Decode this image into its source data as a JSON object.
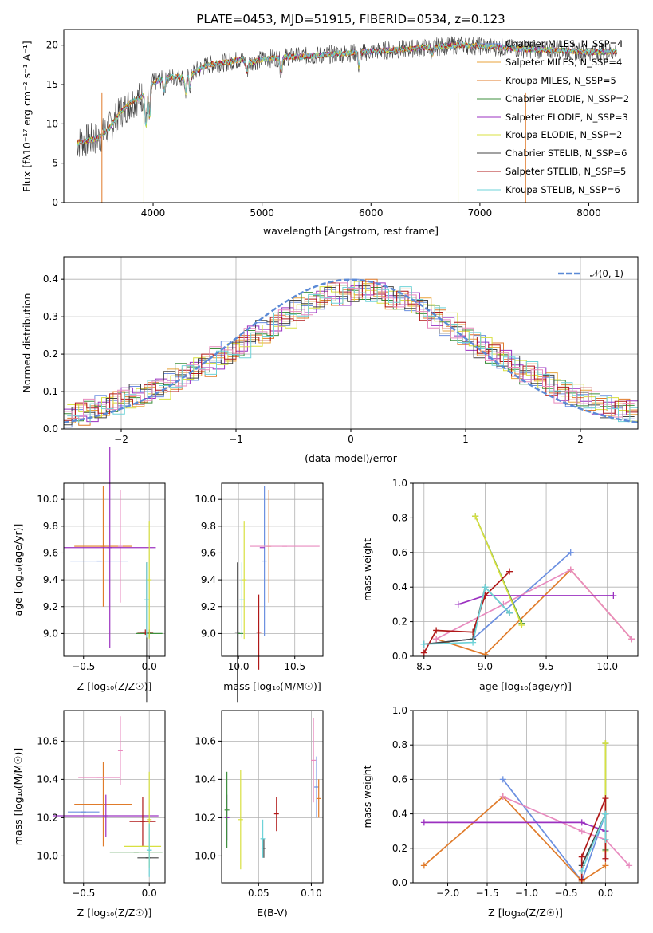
{
  "chart_data": [
    {
      "type": "line",
      "title": "PLATE=0453, MJD=51915, FIBERID=0534, z=0.123",
      "xlabel": "wavelength [Angstrom, rest frame]",
      "ylabel": "Flux [fλ10⁻¹⁷ erg cm⁻² s⁻¹ A⁻¹]",
      "xlim": [
        3180,
        8450
      ],
      "ylim": [
        0,
        22
      ],
      "xticks": [
        4000,
        5000,
        6000,
        7000,
        8000
      ],
      "yticks": [
        0,
        5,
        10,
        15,
        20
      ],
      "legend_position": "top-right",
      "series": [
        {
          "name": "Chabrier MILES, N_SSP=4",
          "color": "#6b8fe0"
        },
        {
          "name": "Salpeter MILES, N_SSP=4",
          "color": "#e8a33b"
        },
        {
          "name": "Kroupa MILES, N_SSP=5",
          "color": "#e07b2a"
        },
        {
          "name": "Chabrier ELODIE, N_SSP=2",
          "color": "#3d8f3d"
        },
        {
          "name": "Salpeter ELODIE, N_SSP=3",
          "color": "#9b30c0"
        },
        {
          "name": "Kroupa ELODIE, N_SSP=2",
          "color": "#d8e040"
        },
        {
          "name": "Chabrier STELIB, N_SSP=6",
          "color": "#444444"
        },
        {
          "name": "Salpeter STELIB, N_SSP=5",
          "color": "#b01818"
        },
        {
          "name": "Kroupa STELIB, N_SSP=6",
          "color": "#6ed3d8"
        }
      ],
      "continuum": [
        [
          3300,
          7.6
        ],
        [
          3400,
          7.9
        ],
        [
          3500,
          8.2
        ],
        [
          3600,
          9.5
        ],
        [
          3700,
          11.5
        ],
        [
          3800,
          12.8
        ],
        [
          3900,
          13.5
        ],
        [
          4000,
          15.2
        ],
        [
          4100,
          15.8
        ],
        [
          4200,
          16.0
        ],
        [
          4300,
          15.9
        ],
        [
          4400,
          16.8
        ],
        [
          4500,
          17.5
        ],
        [
          4600,
          17.7
        ],
        [
          4700,
          17.9
        ],
        [
          4800,
          18.2
        ],
        [
          4900,
          17.8
        ],
        [
          5000,
          18.2
        ],
        [
          5200,
          18.5
        ],
        [
          5400,
          18.6
        ],
        [
          5600,
          18.8
        ],
        [
          5800,
          19.0
        ],
        [
          6000,
          19.2
        ],
        [
          6200,
          19.4
        ],
        [
          6400,
          19.6
        ],
        [
          6600,
          19.8
        ],
        [
          6800,
          20.0
        ],
        [
          7000,
          19.9
        ],
        [
          7200,
          19.7
        ],
        [
          7400,
          19.5
        ],
        [
          7600,
          19.4
        ],
        [
          7800,
          19.3
        ],
        [
          8000,
          19.1
        ],
        [
          8200,
          19.2
        ]
      ]
    },
    {
      "type": "line",
      "xlabel": "(data-model)/error",
      "ylabel": "Normed distribution",
      "xlim": [
        -2.5,
        2.5
      ],
      "ylim": [
        0,
        0.46
      ],
      "xticks": [
        -2,
        -1,
        0,
        1,
        2
      ],
      "yticks": [
        0.0,
        0.1,
        0.2,
        0.3,
        0.4
      ],
      "grid": true,
      "legend": "𝒩(0, 1)",
      "legend_color": "#5b8ad6",
      "legend_position": "top-right",
      "histogram_bin_width": 0.1,
      "histogram_profile": [
        0.035,
        0.04,
        0.05,
        0.06,
        0.07,
        0.08,
        0.09,
        0.1,
        0.11,
        0.13,
        0.145,
        0.16,
        0.17,
        0.19,
        0.205,
        0.22,
        0.245,
        0.26,
        0.28,
        0.3,
        0.32,
        0.335,
        0.35,
        0.36,
        0.36,
        0.37,
        0.37,
        0.36,
        0.35,
        0.35,
        0.34,
        0.32,
        0.3,
        0.28,
        0.255,
        0.24,
        0.22,
        0.2,
        0.18,
        0.165,
        0.15,
        0.14,
        0.12,
        0.1,
        0.09,
        0.08,
        0.07,
        0.06,
        0.05,
        0.045
      ]
    },
    {
      "type": "scatter",
      "xlabel": "Z [log₁₀(Z/Z☉)]",
      "ylabel": "age  [log₁₀(age/yr)]",
      "xlim": [
        -0.65,
        0.12
      ],
      "ylim": [
        8.83,
        10.12
      ],
      "xticks": [
        -0.5,
        0.0
      ],
      "yticks": [
        9.0,
        9.2,
        9.4,
        9.6,
        9.8,
        10.0
      ],
      "grid": true,
      "points": [
        {
          "x": -0.38,
          "y": 9.54,
          "xerr": 0.22,
          "yerr": 0.0,
          "color": "#6b8fe0"
        },
        {
          "x": -0.35,
          "y": 9.65,
          "xerr": 0.22,
          "yerr": 0.45,
          "color": "#e07b2a"
        },
        {
          "x": -0.22,
          "y": 9.65,
          "xerr": 0.0,
          "yerr": 0.42,
          "color": "#e88bbf"
        },
        {
          "x": -0.3,
          "y": 9.64,
          "xerr": 0.35,
          "yerr": 0.75,
          "color": "#9b30c0"
        },
        {
          "x": 0.0,
          "y": 9.0,
          "xerr": 0.1,
          "yerr": 0.03,
          "color": "#3d8f3d"
        },
        {
          "x": -0.02,
          "y": 9.01,
          "xerr": 0.05,
          "yerr": 0.52,
          "color": "#444444"
        },
        {
          "x": -0.03,
          "y": 9.01,
          "xerr": 0.06,
          "yerr": 0.02,
          "color": "#b01818"
        },
        {
          "x": 0.0,
          "y": 9.4,
          "xerr": 0.0,
          "yerr": 0.44,
          "color": "#d8e040"
        },
        {
          "x": -0.02,
          "y": 9.25,
          "xerr": 0.02,
          "yerr": 0.28,
          "color": "#6ed3d8"
        }
      ]
    },
    {
      "type": "scatter",
      "xlabel": "mass [log₁₀(M/M☉)]",
      "xlim": [
        9.85,
        10.75
      ],
      "ylim": [
        8.83,
        10.12
      ],
      "xticks": [
        10.0,
        10.5
      ],
      "yticks": [
        9.0,
        9.2,
        9.4,
        9.6,
        9.8,
        10.0
      ],
      "grid": true,
      "points": [
        {
          "x": 10.23,
          "y": 9.54,
          "xerr": 0.0,
          "yerr": 0.56,
          "color": "#6b8fe0"
        },
        {
          "x": 10.27,
          "y": 9.65,
          "xerr": 0.0,
          "yerr": 0.42,
          "color": "#e07b2a"
        },
        {
          "x": 10.41,
          "y": 9.65,
          "xerr": 0.31,
          "yerr": 0.0,
          "color": "#e88bbf"
        },
        {
          "x": 10.21,
          "y": 9.64,
          "xerr": 0.0,
          "yerr": 0.0,
          "color": "#9b30c0"
        },
        {
          "x": 10.02,
          "y": 9.0,
          "xerr": 0.0,
          "yerr": 0.0,
          "color": "#3d8f3d"
        },
        {
          "x": 9.99,
          "y": 9.01,
          "xerr": 0.0,
          "yerr": 0.52,
          "color": "#444444"
        },
        {
          "x": 10.18,
          "y": 9.01,
          "xerr": 0.0,
          "yerr": 0.28,
          "color": "#b01818"
        },
        {
          "x": 10.05,
          "y": 9.4,
          "xerr": 0.0,
          "yerr": 0.44,
          "color": "#d8e040"
        },
        {
          "x": 10.03,
          "y": 9.25,
          "xerr": 0.0,
          "yerr": 0.28,
          "color": "#6ed3d8"
        }
      ]
    },
    {
      "type": "line",
      "xlabel": "age  [log₁₀(age/yr)]",
      "ylabel": "mass weight",
      "xlim": [
        8.41,
        10.25
      ],
      "ylim": [
        0,
        1
      ],
      "xticks": [
        8.5,
        9.0,
        9.5,
        10.0
      ],
      "yticks": [
        0.0,
        0.2,
        0.4,
        0.6,
        0.8,
        1.0
      ],
      "grid": true,
      "series": [
        {
          "color": "#6b8fe0",
          "points": [
            [
              8.5,
              0.07
            ],
            [
              8.9,
              0.1
            ],
            [
              9.7,
              0.6
            ]
          ]
        },
        {
          "color": "#e07b2a",
          "points": [
            [
              8.6,
              0.1
            ],
            [
              9.0,
              0.01
            ],
            [
              9.7,
              0.5
            ],
            [
              10.2,
              0.1
            ]
          ]
        },
        {
          "color": "#e88bbf",
          "points": [
            [
              8.6,
              0.1
            ],
            [
              9.15,
              0.3
            ],
            [
              9.7,
              0.5
            ],
            [
              10.2,
              0.1
            ]
          ]
        },
        {
          "color": "#9b30c0",
          "points": [
            [
              8.78,
              0.3
            ],
            [
              9.0,
              0.35
            ],
            [
              10.05,
              0.35
            ]
          ]
        },
        {
          "color": "#3d8f3d",
          "points": [
            [
              8.92,
              0.81
            ],
            [
              9.3,
              0.19
            ]
          ]
        },
        {
          "color": "#d8e040",
          "points": [
            [
              8.92,
              0.81
            ],
            [
              9.3,
              0.18
            ]
          ]
        },
        {
          "color": "#444444",
          "points": [
            [
              8.5,
              0.07
            ],
            [
              8.9,
              0.1
            ],
            [
              9.0,
              0.4
            ],
            [
              9.2,
              0.25
            ]
          ]
        },
        {
          "color": "#b01818",
          "points": [
            [
              8.5,
              0.02
            ],
            [
              8.6,
              0.15
            ],
            [
              8.9,
              0.14
            ],
            [
              9.0,
              0.35
            ],
            [
              9.2,
              0.49
            ]
          ]
        },
        {
          "color": "#6ed3d8",
          "points": [
            [
              8.5,
              0.07
            ],
            [
              8.9,
              0.08
            ],
            [
              9.0,
              0.4
            ],
            [
              9.2,
              0.25
            ]
          ]
        }
      ]
    },
    {
      "type": "scatter",
      "xlabel": "Z [log₁₀(Z/Z☉)]",
      "ylabel": "mass [log₁₀(M/M☉)]",
      "xlim": [
        -0.65,
        0.12
      ],
      "ylim": [
        9.86,
        10.76
      ],
      "xticks": [
        -0.5,
        0.0
      ],
      "yticks": [
        10.0,
        10.2,
        10.4,
        10.6
      ],
      "grid": true,
      "points": [
        {
          "x": -0.5,
          "y": 10.23,
          "xerr": 0.12,
          "yerr": 0.0,
          "color": "#6b8fe0"
        },
        {
          "x": -0.35,
          "y": 10.27,
          "xerr": 0.22,
          "yerr": 0.22,
          "color": "#e07b2a"
        },
        {
          "x": -0.38,
          "y": 10.41,
          "xerr": 0.16,
          "yerr": 0.0,
          "color": "#e88bbf"
        },
        {
          "x": -0.22,
          "y": 10.55,
          "xerr": 0.0,
          "yerr": 0.18,
          "color": "#e88bbf"
        },
        {
          "x": -0.33,
          "y": 10.21,
          "xerr": 0.4,
          "yerr": 0.11,
          "color": "#9b30c0"
        },
        {
          "x": -0.1,
          "y": 10.02,
          "xerr": 0.2,
          "yerr": 0.0,
          "color": "#3d8f3d"
        },
        {
          "x": -0.01,
          "y": 9.99,
          "xerr": 0.08,
          "yerr": 0.0,
          "color": "#444444"
        },
        {
          "x": -0.05,
          "y": 10.18,
          "xerr": 0.1,
          "yerr": 0.13,
          "color": "#b01818"
        },
        {
          "x": -0.05,
          "y": 10.05,
          "xerr": 0.14,
          "yerr": 0.0,
          "color": "#d8e040"
        },
        {
          "x": 0.0,
          "y": 10.19,
          "xerr": 0.0,
          "yerr": 0.25,
          "color": "#d8e040"
        },
        {
          "x": 0.0,
          "y": 10.03,
          "xerr": 0.02,
          "yerr": 0.14,
          "color": "#6ed3d8"
        }
      ]
    },
    {
      "type": "scatter",
      "xlabel": "E(B-V)",
      "xlim": [
        0.015,
        0.111
      ],
      "ylim": [
        9.86,
        10.76
      ],
      "xticks": [
        0.05,
        0.1
      ],
      "yticks": [
        10.0,
        10.2,
        10.4,
        10.6
      ],
      "grid": true,
      "points": [
        {
          "x": 0.105,
          "y": 10.36,
          "xerr": 0.0,
          "yerr": 0.16,
          "color": "#6b8fe0"
        },
        {
          "x": 0.107,
          "y": 10.3,
          "xerr": 0.0,
          "yerr": 0.1,
          "color": "#e07b2a"
        },
        {
          "x": 0.102,
          "y": 10.5,
          "xerr": 0.0,
          "yerr": 0.22,
          "color": "#e88bbf"
        },
        {
          "x": 0.02,
          "y": 10.2,
          "xerr": 0.0,
          "yerr": 0.12,
          "color": "#9b30c0"
        },
        {
          "x": 0.02,
          "y": 10.24,
          "xerr": 0.0,
          "yerr": 0.2,
          "color": "#3d8f3d"
        },
        {
          "x": 0.055,
          "y": 10.04,
          "xerr": 0.0,
          "yerr": 0.05,
          "color": "#444444"
        },
        {
          "x": 0.067,
          "y": 10.22,
          "xerr": 0.0,
          "yerr": 0.09,
          "color": "#b01818"
        },
        {
          "x": 0.033,
          "y": 10.19,
          "xerr": 0.0,
          "yerr": 0.26,
          "color": "#d8e040"
        },
        {
          "x": 0.054,
          "y": 10.09,
          "xerr": 0.0,
          "yerr": 0.1,
          "color": "#6ed3d8"
        }
      ]
    },
    {
      "type": "line",
      "xlabel": "Z [log₁₀(Z/Z☉)]",
      "ylabel": "mass weight",
      "xlim": [
        -2.44,
        0.41
      ],
      "ylim": [
        0,
        1
      ],
      "xticks": [
        -2.0,
        -1.5,
        -1.0,
        -0.5,
        0.0
      ],
      "yticks": [
        0.0,
        0.2,
        0.4,
        0.6,
        0.8,
        1.0
      ],
      "grid": true,
      "series": [
        {
          "color": "#6b8fe0",
          "points": [
            [
              -1.3,
              0.6
            ],
            [
              -0.3,
              0.01
            ],
            [
              0.0,
              0.4
            ]
          ]
        },
        {
          "color": "#e07b2a",
          "points": [
            [
              -2.3,
              0.1
            ],
            [
              -1.3,
              0.5
            ],
            [
              -0.3,
              0.01
            ],
            [
              0.0,
              0.1
            ]
          ]
        },
        {
          "color": "#e88bbf",
          "points": [
            [
              -1.3,
              0.5
            ],
            [
              -0.3,
              0.3
            ],
            [
              0.0,
              0.25
            ],
            [
              0.3,
              0.1
            ]
          ]
        },
        {
          "color": "#9b30c0",
          "points": [
            [
              -2.3,
              0.35
            ],
            [
              -0.3,
              0.35
            ],
            [
              0.0,
              0.3
            ]
          ]
        },
        {
          "color": "#3d8f3d",
          "points": [
            [
              0.0,
              0.81
            ],
            [
              0.0,
              0.19
            ]
          ]
        },
        {
          "color": "#d8e040",
          "points": [
            [
              0.0,
              0.81
            ],
            [
              0.0,
              0.18
            ]
          ]
        },
        {
          "color": "#444444",
          "points": [
            [
              -0.3,
              0.1
            ],
            [
              0.0,
              0.4
            ],
            [
              0.0,
              0.25
            ]
          ]
        },
        {
          "color": "#b01818",
          "points": [
            [
              -0.3,
              0.02
            ],
            [
              -0.3,
              0.15
            ],
            [
              0.0,
              0.49
            ],
            [
              0.0,
              0.14
            ]
          ]
        },
        {
          "color": "#6ed3d8",
          "points": [
            [
              -0.3,
              0.07
            ],
            [
              0.0,
              0.4
            ],
            [
              0.0,
              0.25
            ]
          ]
        }
      ]
    }
  ]
}
